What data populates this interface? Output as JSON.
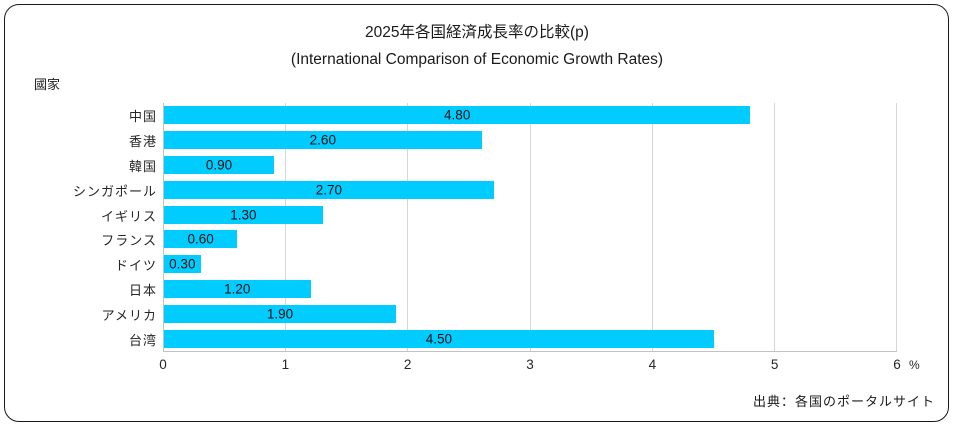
{
  "title": {
    "line1": "2025年各国経済成長率の比較(p)",
    "line2": "(International Comparison of Economic Growth Rates)"
  },
  "axis_title": "國家",
  "unit_label": "%",
  "source": "出典：各国のポータルサイト",
  "colors": {
    "bar": "#00CCFF",
    "gridline": "#D6D6D6",
    "axis_line": "#C2C2C2",
    "text": "#1A1A1A",
    "frame_border": "#1A1A1A"
  },
  "chart_data": {
    "type": "bar",
    "orientation": "horizontal",
    "title": "2025年各国経済成長率の比較(p)",
    "subtitle": "(International Comparison of Economic Growth Rates)",
    "ylabel": "國家",
    "xlabel": "%",
    "categories": [
      "中国",
      "香港",
      "韓国",
      "シンガポール",
      "イギリス",
      "フランス",
      "ドイツ",
      "日本",
      "アメリカ",
      "台湾"
    ],
    "values": [
      4.8,
      2.6,
      0.9,
      2.7,
      1.3,
      0.6,
      0.3,
      1.2,
      1.9,
      4.5
    ],
    "value_labels": [
      "4.80",
      "2.60",
      "0.90",
      "2.70",
      "1.30",
      "0.60",
      "0.30",
      "1.20",
      "1.90",
      "4.50"
    ],
    "xlim": [
      0,
      6
    ],
    "xticks": [
      0,
      1,
      2,
      3,
      4,
      5,
      6
    ],
    "grid": "vertical",
    "legend": "none",
    "bar_color": "#00CCFF",
    "source": "出典：各国のポータルサイト"
  }
}
